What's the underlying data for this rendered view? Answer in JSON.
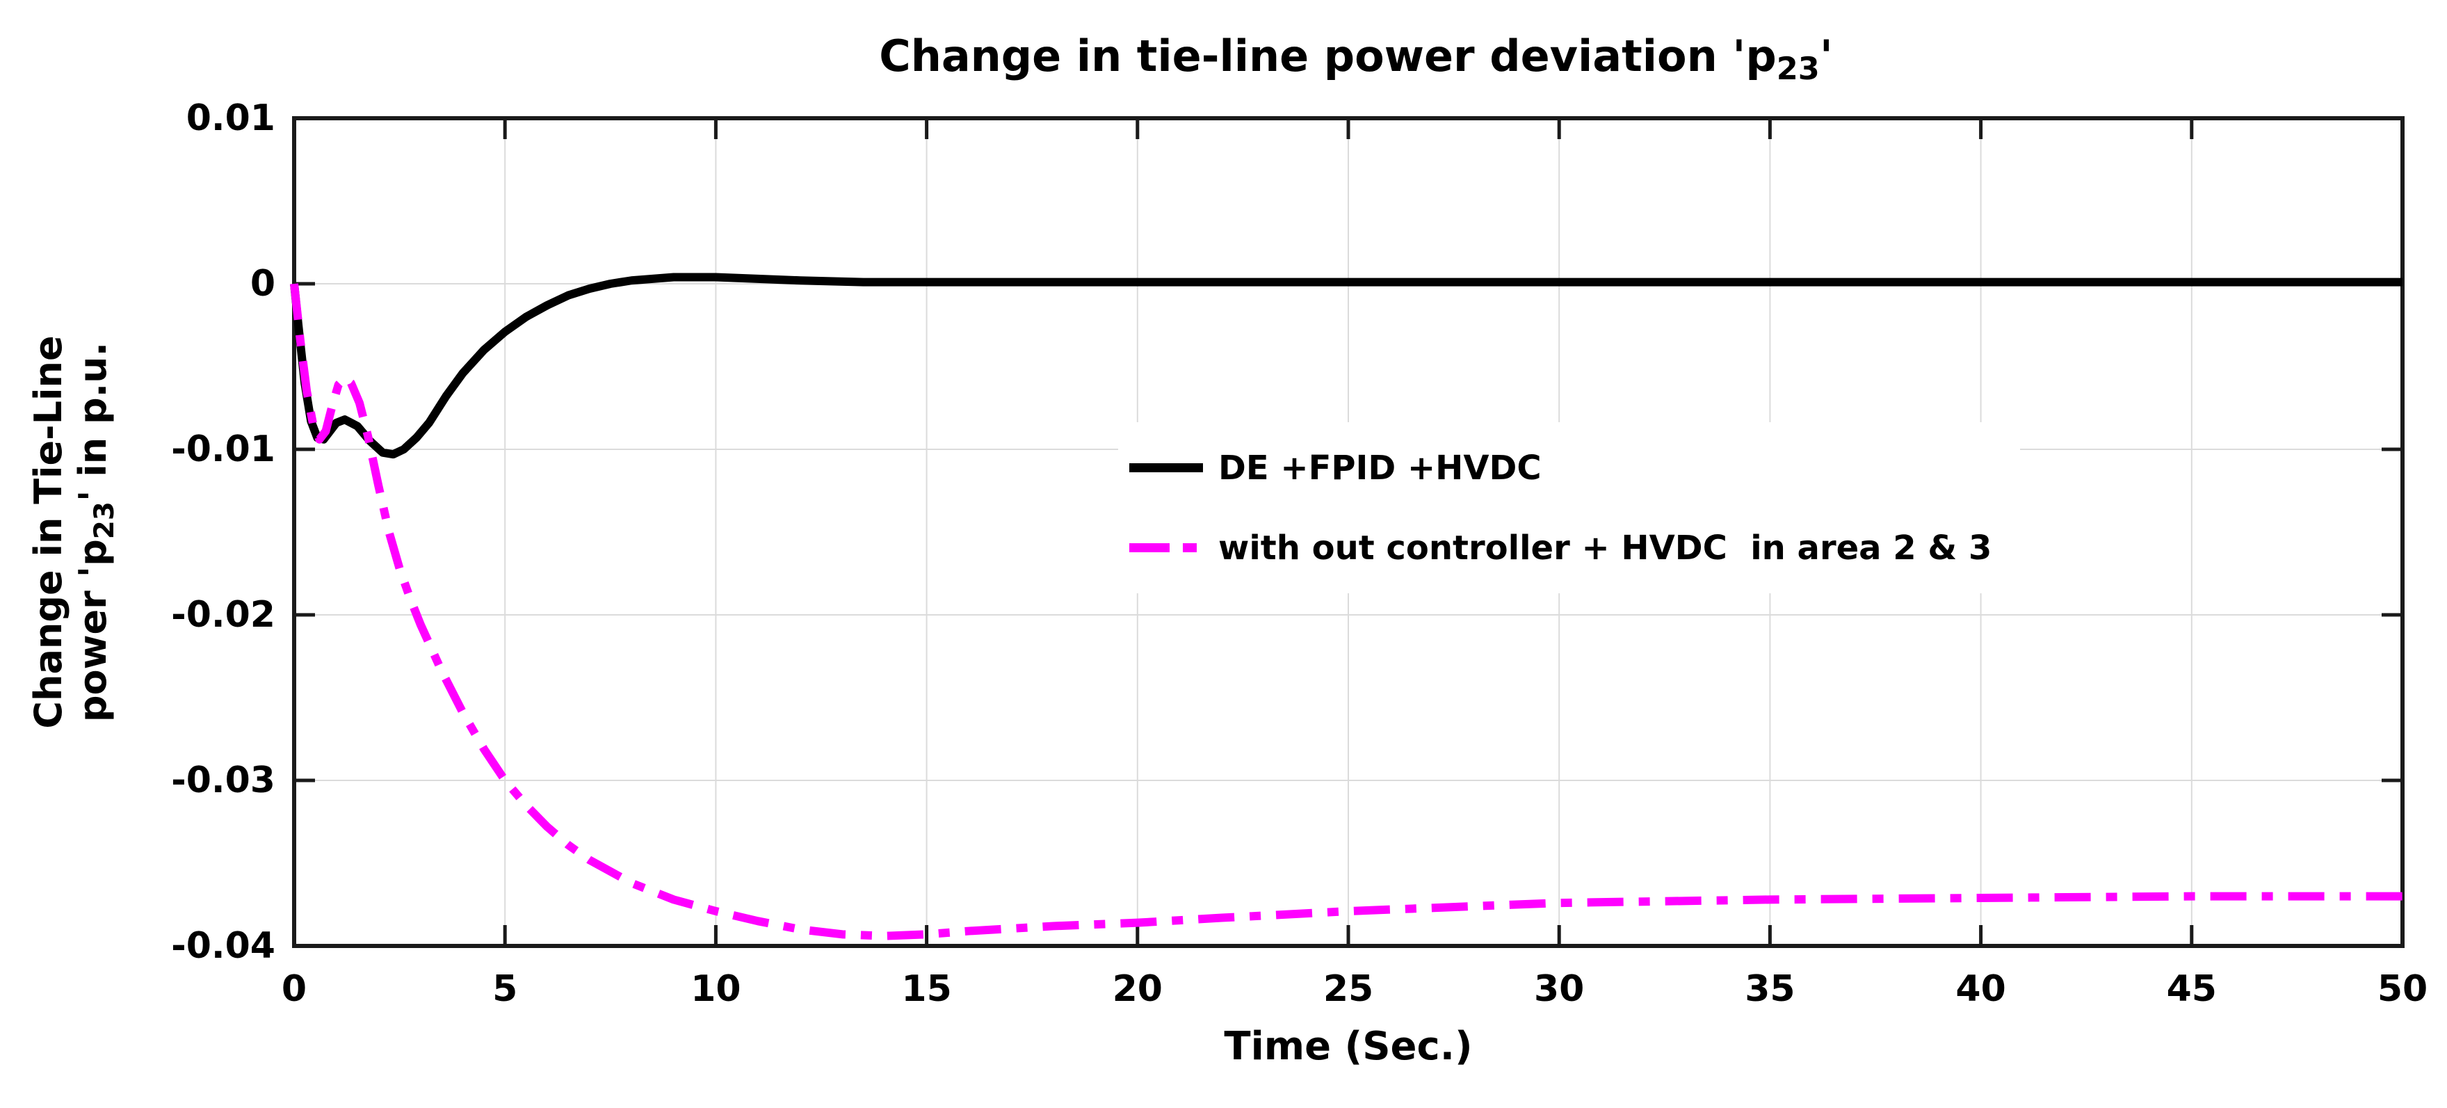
{
  "figure": {
    "title": {
      "prefix": "Change in tie-line power deviation 'p",
      "sub": "23",
      "suffix": "'"
    },
    "ylabel": {
      "line1": "Change in Tie-Line",
      "line2_prefix": "power 'p",
      "line2_sub": "23",
      "line2_suffix": "' in p.u."
    },
    "xlabel": "Time (Sec.)"
  },
  "chart_data": {
    "type": "line",
    "title": "Change in tie-line power deviation 'p23'",
    "xlabel": "Time (Sec.)",
    "ylabel": "Change in Tie-Line power 'p23' in p.u.",
    "xlim": [
      0,
      50
    ],
    "ylim": [
      -0.04,
      0.01
    ],
    "xticks": [
      0,
      5,
      10,
      15,
      20,
      25,
      30,
      35,
      40,
      45,
      50
    ],
    "xtick_labels": [
      "0",
      "5",
      "10",
      "15",
      "20",
      "25",
      "30",
      "35",
      "40",
      "45",
      "50"
    ],
    "yticks": [
      0.01,
      0,
      -0.01,
      -0.02,
      -0.03,
      -0.04
    ],
    "ytick_labels": [
      "0.01",
      "0",
      "-0.01",
      "-0.02",
      "-0.03",
      "-0.04"
    ],
    "grid": true,
    "legend_position": "inside-center",
    "colors": {
      "grid": "#DBDBDB",
      "axis": "#1A1A1A",
      "background": "#FFFFFF"
    },
    "legend": {
      "items": [
        {
          "label": "DE +FPID +HVDC",
          "color": "#000000",
          "style": "solid"
        },
        {
          "label": "with out controller + HVDC  in area 2 & 3",
          "color": "#FF00FF",
          "style": "dash-dot"
        }
      ]
    },
    "series": [
      {
        "name": "DE +FPID +HVDC",
        "color": "#000000",
        "style": "solid",
        "x": [
          0,
          0.1,
          0.25,
          0.4,
          0.55,
          0.7,
          0.85,
          1.0,
          1.2,
          1.5,
          1.8,
          2.1,
          2.35,
          2.6,
          2.9,
          3.2,
          3.6,
          4.0,
          4.5,
          5.0,
          5.5,
          6.0,
          6.5,
          7.0,
          7.5,
          8.0,
          8.5,
          9.0,
          10.0,
          11.0,
          12.0,
          13.5,
          15.0,
          17.0,
          20.0,
          25.0,
          30.0,
          40.0,
          50.0
        ],
        "y": [
          0,
          -0.0025,
          -0.006,
          -0.0083,
          -0.0093,
          -0.0094,
          -0.0089,
          -0.0084,
          -0.0082,
          -0.0086,
          -0.0095,
          -0.0102,
          -0.0103,
          -0.01,
          -0.0093,
          -0.0084,
          -0.0068,
          -0.0054,
          -0.004,
          -0.0029,
          -0.002,
          -0.0013,
          -0.0007,
          -0.0003,
          0.0,
          0.0002,
          0.0003,
          0.0004,
          0.0004,
          0.0003,
          0.0002,
          0.0001,
          0.0001,
          0.0001,
          0.0001,
          0.0001,
          0.0001,
          0.0001,
          0.0001
        ]
      },
      {
        "name": "with out controller + HVDC  in area 2 & 3",
        "color": "#FF00FF",
        "style": "dash-dot",
        "x": [
          0,
          0.15,
          0.3,
          0.45,
          0.6,
          0.75,
          0.9,
          1.05,
          1.2,
          1.35,
          1.55,
          1.75,
          2.0,
          2.25,
          2.5,
          2.75,
          3.0,
          3.5,
          4.0,
          4.5,
          5.0,
          5.5,
          6.0,
          6.5,
          7.0,
          8.0,
          9.0,
          10.0,
          11.0,
          12.0,
          13.0,
          14.0,
          15.0,
          16.0,
          18.0,
          20.0,
          22.0,
          25.0,
          28.0,
          30.0,
          35.0,
          40.0,
          45.0,
          50.0
        ],
        "y": [
          0,
          -0.0035,
          -0.0065,
          -0.0085,
          -0.0094,
          -0.0089,
          -0.0074,
          -0.0061,
          -0.0057,
          -0.006,
          -0.0072,
          -0.0092,
          -0.0122,
          -0.015,
          -0.0172,
          -0.019,
          -0.0206,
          -0.0234,
          -0.0259,
          -0.0281,
          -0.03,
          -0.0315,
          -0.0328,
          -0.0339,
          -0.0348,
          -0.0362,
          -0.0372,
          -0.0379,
          -0.0385,
          -0.039,
          -0.0393,
          -0.0394,
          -0.0393,
          -0.0391,
          -0.0388,
          -0.0386,
          -0.0383,
          -0.0379,
          -0.0376,
          -0.0374,
          -0.0372,
          -0.0371,
          -0.037,
          -0.037
        ]
      }
    ]
  }
}
